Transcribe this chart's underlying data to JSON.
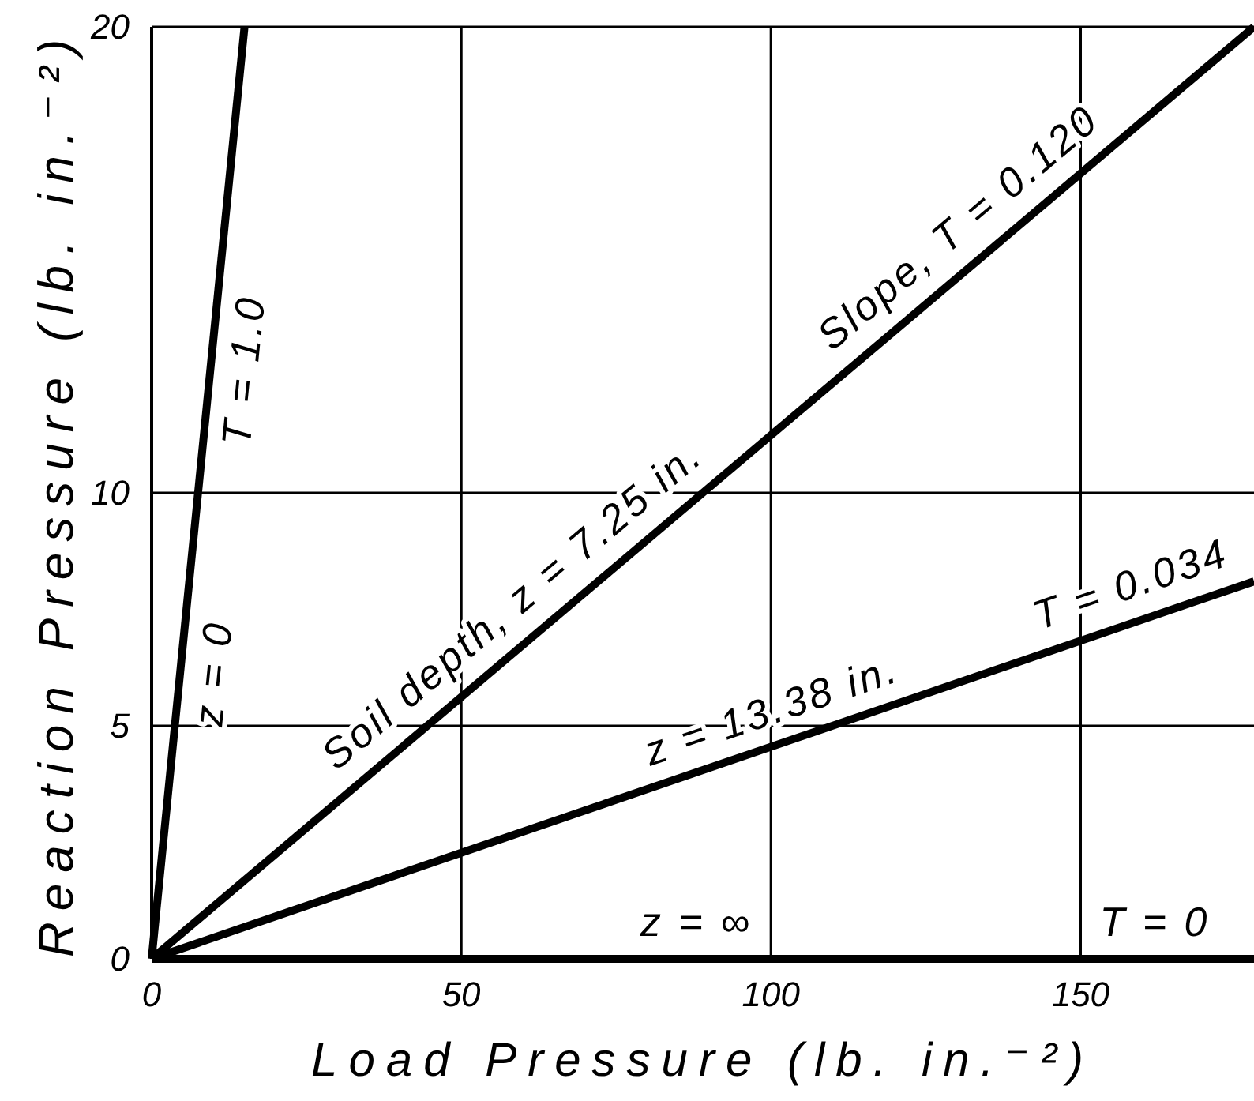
{
  "chart_data": {
    "type": "line",
    "xlabel": "Load Pressure (lb. in.⁻²)",
    "ylabel": "Reaction Pressure (lb. in.⁻²)",
    "xlim": [
      0,
      178
    ],
    "ylim": [
      0,
      20
    ],
    "xticks": [
      0,
      50,
      100,
      150
    ],
    "yticks": [
      0,
      5,
      10,
      20
    ],
    "grid": true,
    "series": [
      {
        "color": "#000000",
        "x": [
          0,
          15
        ],
        "values": [
          0,
          20
        ]
      },
      {
        "color": "#000000",
        "x": [
          0,
          178
        ],
        "values": [
          0,
          20
        ]
      },
      {
        "color": "#000000",
        "x": [
          0,
          178
        ],
        "values": [
          0,
          8.1
        ]
      },
      {
        "color": "#000000",
        "x": [
          0,
          178
        ],
        "values": [
          0,
          0
        ]
      }
    ],
    "annotations": [
      {
        "text": "T = 1.0",
        "x": 9.5,
        "y": 12.7
      },
      {
        "text": "z = 0",
        "x": 4.6,
        "y": 6.2
      },
      {
        "text": "Soil depth, z = 7.25 in.",
        "x": 62,
        "y": 7
      },
      {
        "text": "Slope, T = 0.120",
        "x": 134,
        "y": 15.1
      },
      {
        "text": "z = 13.38 in.",
        "x": 102,
        "y": 4.6
      },
      {
        "text": "T = 0.034",
        "x": 160,
        "y": 7.3
      },
      {
        "text": "z = ∞",
        "x": 88,
        "y": 0
      },
      {
        "text": "T = 0",
        "x": 162,
        "y": 0
      }
    ]
  }
}
